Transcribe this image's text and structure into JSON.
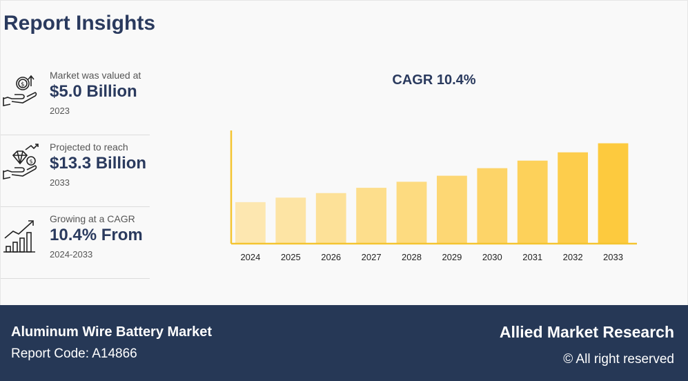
{
  "header": {
    "title": "Report Insights"
  },
  "stats": [
    {
      "label": "Market was valued at",
      "value": "$5.0 Billion",
      "sub": "2023",
      "icon": "money-hand-icon"
    },
    {
      "label": "Projected to reach",
      "value": "$13.3 Billion",
      "sub": "2033",
      "icon": "diamond-hand-icon"
    },
    {
      "label": "Growing at a CAGR",
      "value": "10.4% From",
      "sub": "2024-2033",
      "icon": "growth-bars-icon"
    }
  ],
  "chart_data": {
    "type": "bar",
    "title": "CAGR 10.4%",
    "xlabel": "",
    "ylabel": "",
    "categories": [
      "2024",
      "2025",
      "2026",
      "2027",
      "2028",
      "2029",
      "2030",
      "2031",
      "2032",
      "2033"
    ],
    "values": [
      5.5,
      6.1,
      6.7,
      7.4,
      8.2,
      9.0,
      10.0,
      11.0,
      12.1,
      13.3
    ],
    "ylim": [
      0,
      15
    ],
    "grid": false,
    "colors": [
      "#fde7b0",
      "#fde4a4",
      "#fde198",
      "#fdde8c",
      "#fddb80",
      "#fdd774",
      "#fdd468",
      "#fdd15a",
      "#fdcd4c",
      "#fdca3e"
    ],
    "axis_color": "#f4c430"
  },
  "footer": {
    "market_name": "Aluminum Wire Battery Market",
    "report_code": "Report Code: A14866",
    "brand": "Allied Market Research",
    "rights": "© All right reserved"
  }
}
